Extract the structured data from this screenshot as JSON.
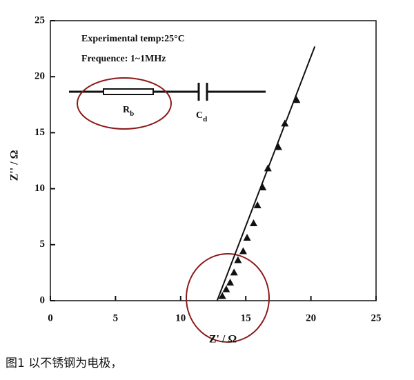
{
  "chart_data": {
    "type": "scatter",
    "annotations": [
      "Experimental temp:25°C",
      "Frequence: 1~1MHz"
    ],
    "circuit": {
      "resistor": {
        "main": "R",
        "sub": "b"
      },
      "capacitor": {
        "main": "C",
        "sub": "d"
      }
    },
    "xlabel": "Z' / Ω",
    "ylabel": "Z'' / Ω",
    "xlim": [
      0,
      25
    ],
    "ylim": [
      0,
      25
    ],
    "xticks": [
      0,
      5,
      10,
      15,
      20,
      25
    ],
    "yticks": [
      0,
      5,
      10,
      15,
      20,
      25
    ],
    "series": [
      {
        "style": "marker",
        "marker": "triangle",
        "color": "#111111",
        "x": [
          13.2,
          13.5,
          13.8,
          14.1,
          14.4,
          14.8,
          15.1,
          15.6,
          15.9,
          16.3,
          16.7,
          17.5,
          18.0,
          18.9
        ],
        "y": [
          0.4,
          1.0,
          1.6,
          2.5,
          3.6,
          4.4,
          5.6,
          6.9,
          8.5,
          10.1,
          11.8,
          13.7,
          15.8,
          17.9
        ]
      },
      {
        "style": "line",
        "color": "#111111",
        "x": [
          12.8,
          20.3
        ],
        "y": [
          0,
          22.7
        ]
      }
    ]
  },
  "caption": "图1   以不锈钢为电极，"
}
